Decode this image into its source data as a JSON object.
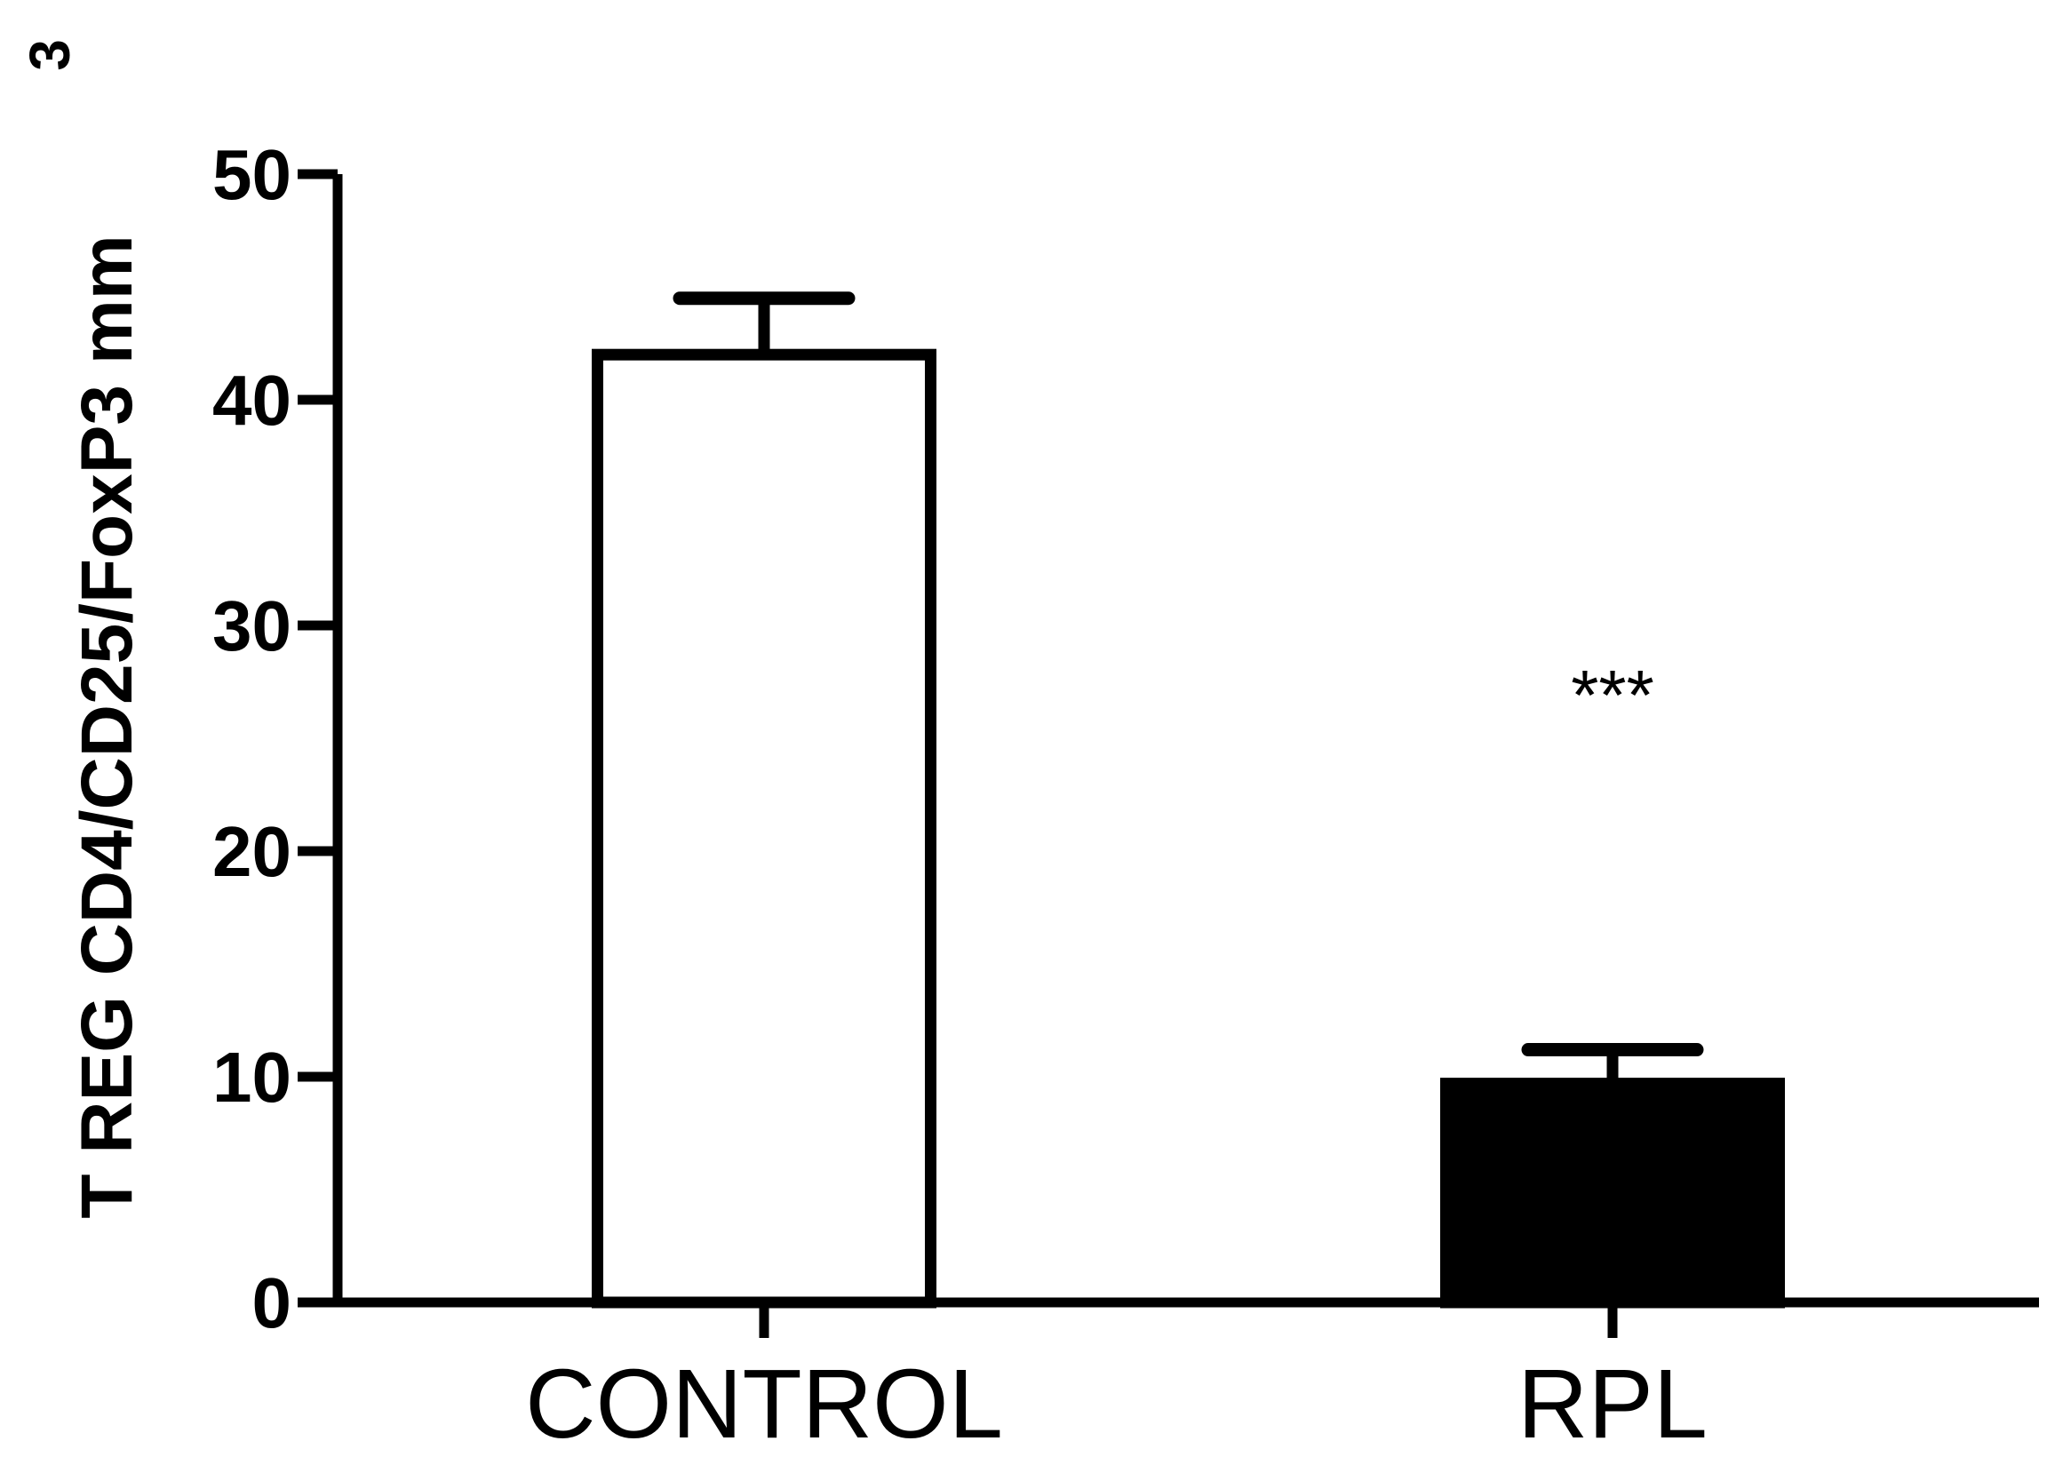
{
  "chart_data": {
    "type": "bar",
    "title": "",
    "xlabel": "",
    "ylabel": "T REG CD4/CD25/FoxP3 mm",
    "ylabel_superscript": "3",
    "categories": [
      "CONTROL",
      "RPL"
    ],
    "values": [
      42,
      9.7
    ],
    "error_upper": [
      44.5,
      11.2
    ],
    "bar_fills": [
      "#ffffff",
      "#000000"
    ],
    "ylim": [
      0,
      50
    ],
    "yticks": [
      0,
      10,
      20,
      30,
      40,
      50
    ],
    "annotations": [
      {
        "category": "RPL",
        "text": "***",
        "y": 27
      }
    ],
    "grid": false,
    "legend": "none"
  }
}
